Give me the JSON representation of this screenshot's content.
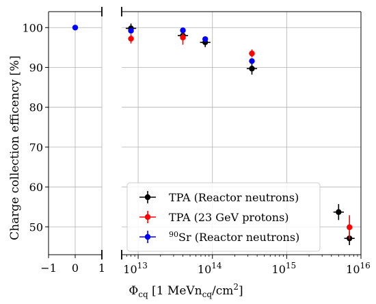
{
  "chart_data": {
    "type": "scatter",
    "ylabel": "Charge collection efficency [%]",
    "xlabel": {
      "pre": "Φ",
      "sub": "cq",
      "mid": " [1 MeVn",
      "sub2": "cq",
      "post": "/cm",
      "sup": "2",
      "end": "]"
    },
    "ylim": [
      43,
      104
    ],
    "y_ticks": [
      {
        "value": 50,
        "label": "50"
      },
      {
        "value": 60,
        "label": "60"
      },
      {
        "value": 70,
        "label": "70"
      },
      {
        "value": 80,
        "label": "80"
      },
      {
        "value": 90,
        "label": "90"
      },
      {
        "value": 100,
        "label": "100"
      }
    ],
    "left_panel": {
      "xlim": [
        -1,
        1
      ],
      "x_ticks": [
        {
          "value": -1,
          "label": "−1"
        },
        {
          "value": 0,
          "label": "0"
        },
        {
          "value": 1,
          "label": "1"
        }
      ]
    },
    "right_panel": {
      "scale": "log",
      "xlim": [
        6000000000000.0,
        1e+16
      ],
      "x_ticks": [
        {
          "value": 10000000000000.0,
          "base": "10",
          "exp": "13"
        },
        {
          "value": 100000000000000.0,
          "base": "10",
          "exp": "14"
        },
        {
          "value": 1000000000000000.0,
          "base": "10",
          "exp": "15"
        },
        {
          "value": 1e+16,
          "base": "10",
          "exp": "16"
        }
      ]
    },
    "grid": true,
    "legend_position": "bottom-right",
    "series": [
      {
        "name": "TPA (Reactor neutrons)",
        "color": "#000000",
        "points": [
          {
            "x": 8000000000000.0,
            "y": 99.8,
            "yerr": 1.2,
            "xerr": 0.07
          },
          {
            "x": 40000000000000.0,
            "y": 98.0,
            "yerr": 1.2,
            "xerr": 0.07
          },
          {
            "x": 80000000000000.0,
            "y": 96.3,
            "yerr": 1.2,
            "xerr": 0.07
          },
          {
            "x": 340000000000000.0,
            "y": 89.7,
            "yerr": 1.5,
            "xerr": 0.07
          },
          {
            "x": 5000000000000000.0,
            "y": 53.7,
            "yerr": 2.0,
            "xerr": 0.07
          },
          {
            "x": 7000000000000000.0,
            "y": 47.1,
            "yerr": 1.7,
            "xerr": 0.07
          }
        ]
      },
      {
        "name": "TPA (23 GeV protons)",
        "color": "#ff0000",
        "points": [
          {
            "x": 8000000000000.0,
            "y": 97.2,
            "yerr": 1.2
          },
          {
            "x": 40000000000000.0,
            "y": 97.5,
            "yerr": 1.8
          },
          {
            "x": 340000000000000.0,
            "y": 93.5,
            "yerr": 1.0
          },
          {
            "x": 7000000000000000.0,
            "y": 49.9,
            "yerr": 3.0
          }
        ]
      },
      {
        "name": "90Sr (Reactor neutrons)",
        "legend_sup": "90",
        "legend_rest": "Sr (Reactor neutrons)",
        "color": "#0000ff",
        "points_left": [
          {
            "x": 0,
            "y": 100.0
          }
        ],
        "points": [
          {
            "x": 8000000000000.0,
            "y": 99.2
          },
          {
            "x": 40000000000000.0,
            "y": 99.3
          },
          {
            "x": 80000000000000.0,
            "y": 97.1
          },
          {
            "x": 340000000000000.0,
            "y": 91.6
          }
        ]
      }
    ]
  }
}
